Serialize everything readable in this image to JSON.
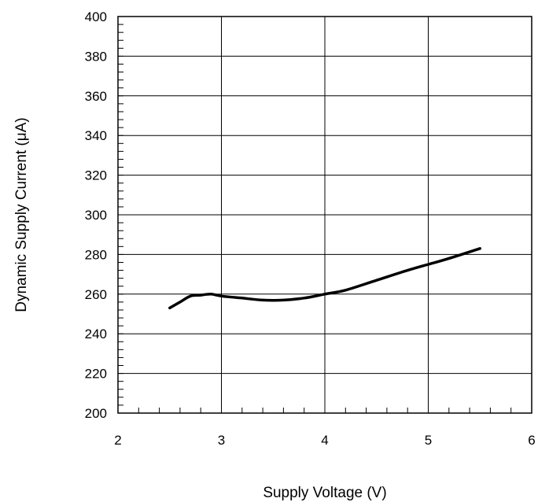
{
  "chart_data": {
    "type": "line",
    "title": "",
    "xlabel": "Supply Voltage (V)",
    "ylabel": "Dynamic Supply Current (μA)",
    "xlim": [
      2,
      6
    ],
    "ylim": [
      200,
      400
    ],
    "x_ticks": [
      "2",
      "3",
      "4",
      "5",
      "6"
    ],
    "y_ticks": [
      "200",
      "220",
      "240",
      "260",
      "280",
      "300",
      "320",
      "340",
      "360",
      "380",
      "400"
    ],
    "grid": true,
    "legend": "none",
    "line_color": "#000000",
    "series": [
      {
        "x": [
          2.5,
          2.6,
          2.7,
          2.8,
          2.9,
          3.0,
          3.2,
          3.4,
          3.6,
          3.8,
          4.0,
          4.2,
          4.5,
          4.8,
          5.0,
          5.2,
          5.5
        ],
        "values": [
          253,
          256,
          259,
          259.5,
          260,
          259,
          258,
          257,
          257,
          258,
          260,
          262,
          267,
          272,
          275,
          278,
          283
        ]
      }
    ]
  }
}
